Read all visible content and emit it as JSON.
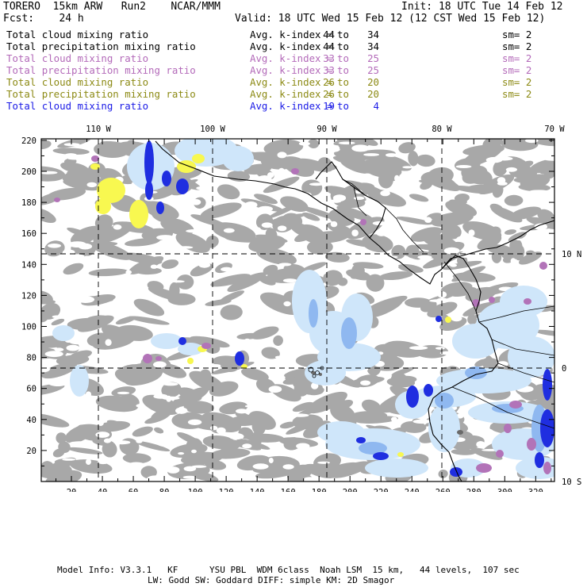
{
  "header": {
    "line1_left": "TORERO  15km ARW   Run2    NCAR/MMM",
    "line1_right": "Init: 18 UTC Tue 14 Feb 12",
    "line2_left": "Fcst:    24 h",
    "line2_right": "Valid: 18 UTC Wed 15 Feb 12 (12 CST Wed 15 Feb 12)"
  },
  "legend": [
    {
      "field": "Total cloud mixing ratio",
      "avg_label": "Avg. k-index =",
      "from": "44",
      "to_word": "to",
      "to": "34",
      "sm": "sm= 2",
      "color": "#000000"
    },
    {
      "field": "Total precipitation mixing ratio",
      "avg_label": "Avg. k-index =",
      "from": "44",
      "to_word": "to",
      "to": "34",
      "sm": "sm= 2",
      "color": "#000000"
    },
    {
      "field": "Total cloud mixing ratio",
      "avg_label": "Avg. k-index =",
      "from": "33",
      "to_word": "to",
      "to": "25",
      "sm": "sm= 2",
      "color": "#b36ab9"
    },
    {
      "field": "Total precipitation mixing ratio",
      "avg_label": "Avg. k-index =",
      "from": "33",
      "to_word": "to",
      "to": "25",
      "sm": "sm= 2",
      "color": "#b36ab9"
    },
    {
      "field": "Total cloud mixing ratio",
      "avg_label": "Avg. k-index =",
      "from": "26",
      "to_word": "to",
      "to": "20",
      "sm": "sm= 2",
      "color": "#8c8a14"
    },
    {
      "field": "Total precipitation mixing ratio",
      "avg_label": "Avg. k-index =",
      "from": "26",
      "to_word": "to",
      "to": "20",
      "sm": "sm= 2",
      "color": "#8c8a14"
    },
    {
      "field": "Total cloud mixing ratio",
      "avg_label": "Avg. k-index =",
      "from": "19",
      "to_word": "to",
      "to": "4",
      "sm": "",
      "color": "#1a1ae6"
    }
  ],
  "map": {
    "top_lon_labels": [
      "110 W",
      "100 W",
      "90 W",
      "80 W",
      "70 W"
    ],
    "right_lat_labels": [
      "10 N",
      "0",
      "10 S"
    ],
    "y_ticks": [
      "220",
      "200",
      "180",
      "160",
      "140",
      "120",
      "100",
      "80",
      "60",
      "40",
      "20"
    ],
    "x_ticks": [
      "20",
      "40",
      "60",
      "80",
      "100",
      "120",
      "140",
      "160",
      "180",
      "200",
      "220",
      "240",
      "260",
      "280",
      "300",
      "320"
    ],
    "colors": {
      "gray": "#a8a8a8",
      "light_blue": "#cfe6fa",
      "mid_blue": "#8fb8f0",
      "dark_blue": "#1f2ee0",
      "purple": "#b273b8",
      "yellow": "#f8f850",
      "dark_gray": "#6a6a6a"
    }
  },
  "footer": {
    "line1": "Model Info: V3.3.1   KF      YSU PBL  WDM 6class  Noah LSM  15 km,   44 levels,  107 sec",
    "line2": "LW: Godd SW: Goddard DIFF: simple KM: 2D Smagor"
  }
}
